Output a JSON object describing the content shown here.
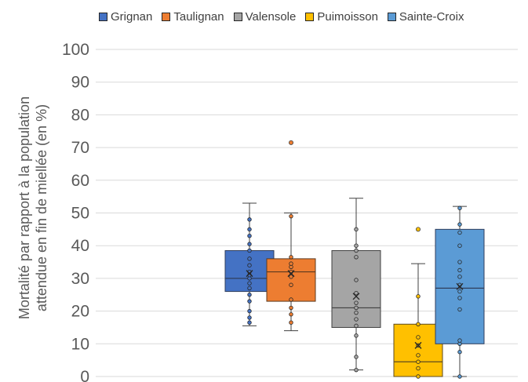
{
  "chart_data": {
    "type": "box",
    "xlabel": "",
    "ylabel_lines": [
      "Mortalité par rapport à la population",
      "attendue en fin de miellée  (en %)"
    ],
    "ylim": [
      0,
      100
    ],
    "yticks": [
      0,
      10,
      20,
      30,
      40,
      50,
      60,
      70,
      80,
      90,
      100
    ],
    "grid": true,
    "legend_position": "top",
    "series": [
      {
        "name": "Grignan",
        "color": "#4472C4",
        "outline": "#2F3E5C",
        "box": {
          "whisker_low": 15.5,
          "q1": 26,
          "median": 30,
          "q3": 38.5,
          "whisker_high": 53,
          "mean": 31.5
        },
        "outliers": [],
        "points": [
          16.5,
          18,
          20,
          23,
          25,
          27,
          28.5,
          30,
          31,
          32,
          34,
          36,
          38.5,
          40.5,
          43,
          45,
          48
        ]
      },
      {
        "name": "Taulignan",
        "color": "#ED7D31",
        "outline": "#5C3A1F",
        "box": {
          "whisker_low": 14,
          "q1": 23,
          "median": 32,
          "q3": 36,
          "whisker_high": 50,
          "mean": 31.5
        },
        "outliers": [
          71.5
        ],
        "points": [
          16.5,
          19,
          21,
          23.5,
          28,
          30.5,
          32,
          33.5,
          34.5,
          36.5,
          49
        ]
      },
      {
        "name": "Valensole",
        "color": "#A5A5A5",
        "outline": "#404040",
        "box": {
          "whisker_low": 2,
          "q1": 15,
          "median": 21,
          "q3": 38.5,
          "whisker_high": 54.5,
          "mean": 24.5
        },
        "outliers": [],
        "points": [
          2,
          6,
          12.5,
          15.5,
          17.5,
          19.5,
          21,
          22.5,
          25.5,
          29.5,
          36.5,
          38.5,
          40,
          45
        ]
      },
      {
        "name": "Puimoisson",
        "color": "#FFC000",
        "outline": "#5C4A1F",
        "box": {
          "whisker_low": 0,
          "q1": 0,
          "median": 4.5,
          "q3": 16,
          "whisker_high": 34.5,
          "mean": 9.5
        },
        "outliers": [
          45
        ],
        "points": [
          0,
          2.5,
          4.5,
          6.5,
          9.5,
          12,
          16,
          24.5
        ]
      },
      {
        "name": "Sainte-Croix",
        "color": "#5B9BD5",
        "outline": "#2F3E5C",
        "box": {
          "whisker_low": 0,
          "q1": 10,
          "median": 27,
          "q3": 45,
          "whisker_high": 52,
          "mean": 27.5
        },
        "outliers": [],
        "points": [
          0,
          7.5,
          10,
          11,
          20.5,
          24,
          26,
          28,
          30.5,
          32.5,
          35,
          40,
          44,
          46.5,
          51.5
        ]
      }
    ]
  }
}
